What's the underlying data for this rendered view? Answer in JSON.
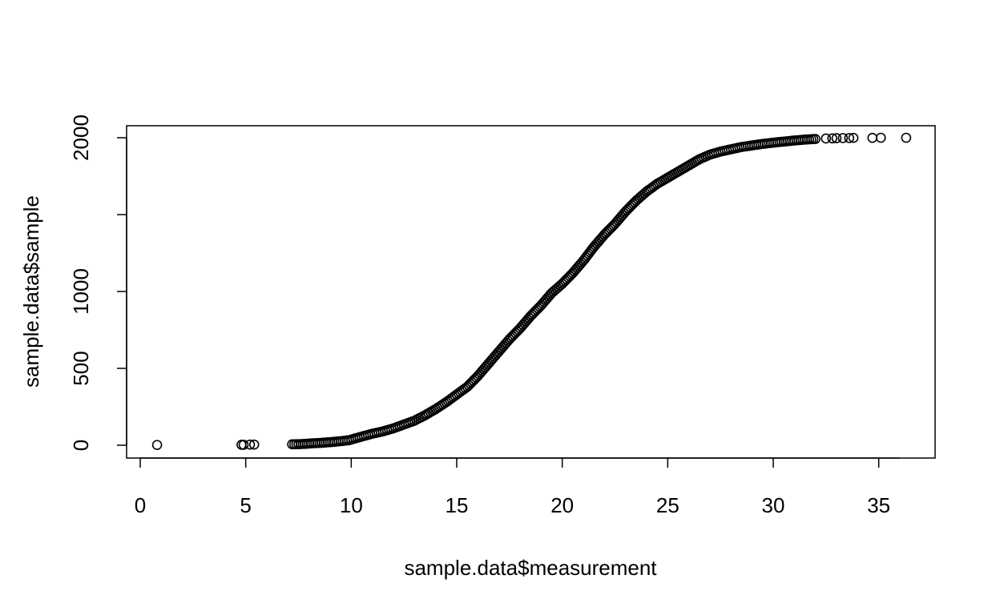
{
  "chart_data": {
    "type": "scatter",
    "xlabel": "sample.data$measurement",
    "ylabel": "sample.data$sample",
    "xlim": [
      0,
      37
    ],
    "ylim": [
      0,
      2000
    ],
    "x_ticks": [
      0,
      5,
      10,
      15,
      20,
      25,
      30,
      35
    ],
    "x_tick_labels": [
      "0",
      "5",
      "10",
      "15",
      "20",
      "25",
      "30",
      "35"
    ],
    "y_ticks": [
      0,
      500,
      1000,
      1500,
      2000
    ],
    "y_tick_labels": [
      "0",
      "500",
      "1000",
      "",
      "2000"
    ],
    "grid": false,
    "legend": "none",
    "marker": "open-circle",
    "series": [
      {
        "x": [
          0.8,
          4.8,
          4.9,
          5.2,
          5.4,
          7.2,
          7.5,
          7.8,
          8.0,
          8.2,
          8.5,
          8.8,
          9.0,
          9.3,
          9.6,
          9.9,
          10.2,
          10.6,
          11.0,
          11.5,
          12.0,
          12.5,
          13.0,
          13.5,
          14.0,
          14.5,
          15.0,
          15.5,
          16.0,
          16.5,
          17.0,
          17.5,
          18.0,
          18.5,
          19.0,
          19.5,
          20.0,
          20.5,
          21.0,
          21.5,
          22.0,
          22.5,
          23.0,
          23.5,
          24.0,
          24.5,
          25.0,
          25.5,
          26.0,
          26.5,
          27.0,
          27.5,
          28.0,
          28.5,
          29.0,
          29.5,
          30.0,
          30.5,
          31.0,
          31.5,
          32.0,
          32.5,
          32.8,
          33.0,
          33.3,
          33.6,
          33.8,
          34.7,
          35.1,
          36.3
        ],
        "y": [
          2,
          3,
          3,
          4,
          4,
          6,
          7,
          9,
          11,
          13,
          15,
          18,
          20,
          24,
          28,
          33,
          45,
          60,
          75,
          90,
          110,
          135,
          160,
          195,
          235,
          280,
          330,
          380,
          450,
          530,
          610,
          690,
          760,
          840,
          910,
          990,
          1050,
          1120,
          1200,
          1290,
          1370,
          1440,
          1520,
          1590,
          1650,
          1700,
          1740,
          1780,
          1820,
          1860,
          1890,
          1910,
          1925,
          1940,
          1950,
          1960,
          1968,
          1975,
          1982,
          1988,
          1992,
          1995,
          1996,
          1997,
          1998,
          1998,
          1999,
          1999,
          2000,
          2000
        ]
      }
    ]
  }
}
